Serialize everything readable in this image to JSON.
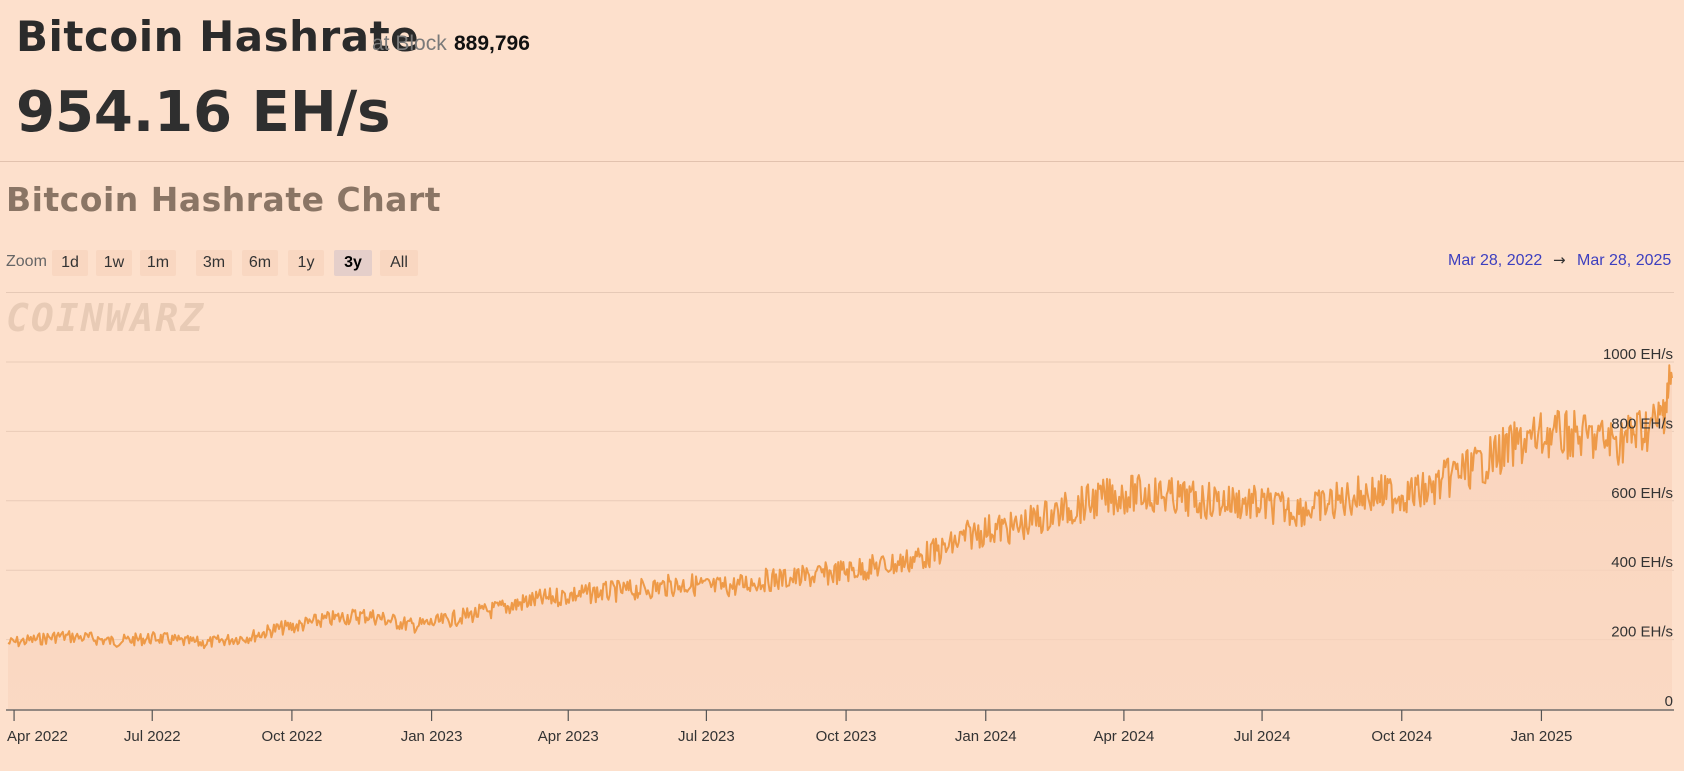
{
  "header": {
    "title": "Bitcoin Hashrate",
    "block_label": "at Block",
    "block_number": "889,796",
    "hashrate_value": "954.16 EH/s"
  },
  "chart_section": {
    "heading": "Bitcoin Hashrate Chart",
    "zoom_label": "Zoom",
    "zoom_options": [
      "1d",
      "1w",
      "1m",
      "3m",
      "6m",
      "1y",
      "3y",
      "All"
    ],
    "active_zoom": "3y",
    "range_from": "Mar 28, 2022",
    "range_arrow": "→",
    "range_to": "Mar 28, 2025",
    "watermark": "COINWARZ"
  },
  "colors": {
    "background": "#fde0cc",
    "line": "#ee9a48",
    "area_fill": "#f9d4bd",
    "range_text": "#3d3fbf"
  },
  "chart_data": {
    "type": "area",
    "title": "",
    "xlabel": "",
    "ylabel": "",
    "y_unit": "EH/s",
    "ylim": [
      0,
      1000
    ],
    "y_ticks": [
      0,
      200,
      400,
      600,
      800,
      1000
    ],
    "y_tick_labels": [
      "0",
      "200 EH/s",
      "400 EH/s",
      "600 EH/s",
      "800 EH/s",
      "1000 EH/s"
    ],
    "xlim": [
      "2022-03-28",
      "2025-03-28"
    ],
    "x_ticks": [
      "2022-04-01",
      "2022-07-01",
      "2022-10-01",
      "2023-01-01",
      "2023-04-01",
      "2023-07-01",
      "2023-10-01",
      "2024-01-01",
      "2024-04-01",
      "2024-07-01",
      "2024-10-01",
      "2025-01-01"
    ],
    "x_tick_labels": [
      "Apr 2022",
      "Jul 2022",
      "Oct 2022",
      "Jan 2023",
      "Apr 2023",
      "Jul 2023",
      "Oct 2023",
      "Jan 2024",
      "Apr 2024",
      "Jul 2024",
      "Oct 2024",
      "Jan 2025"
    ],
    "grid": true,
    "legend": "none",
    "series": [
      {
        "x": [
          "2022-03-28",
          "2022-04-15",
          "2022-05-01",
          "2022-05-20",
          "2022-06-05",
          "2022-06-20",
          "2022-07-05",
          "2022-07-20",
          "2022-08-05",
          "2022-08-20",
          "2022-09-05",
          "2022-09-20",
          "2022-10-05",
          "2022-10-20",
          "2022-11-05",
          "2022-11-20",
          "2022-12-05",
          "2022-12-20",
          "2023-01-05",
          "2023-01-20",
          "2023-02-05",
          "2023-02-20",
          "2023-03-05",
          "2023-03-20",
          "2023-04-05",
          "2023-04-20",
          "2023-05-05",
          "2023-05-20",
          "2023-06-05",
          "2023-06-20",
          "2023-07-05",
          "2023-07-20",
          "2023-08-05",
          "2023-08-20",
          "2023-09-05",
          "2023-09-20",
          "2023-10-05",
          "2023-10-20",
          "2023-11-05",
          "2023-11-20",
          "2023-12-05",
          "2023-12-20",
          "2024-01-05",
          "2024-01-20",
          "2024-02-05",
          "2024-02-20",
          "2024-03-05",
          "2024-03-20",
          "2024-04-05",
          "2024-04-20",
          "2024-05-05",
          "2024-05-20",
          "2024-06-05",
          "2024-06-20",
          "2024-07-05",
          "2024-07-20",
          "2024-08-05",
          "2024-08-20",
          "2024-09-05",
          "2024-09-20",
          "2024-10-05",
          "2024-10-20",
          "2024-11-05",
          "2024-11-20",
          "2024-12-05",
          "2024-12-20",
          "2025-01-05",
          "2025-01-20",
          "2025-02-05",
          "2025-02-20",
          "2025-03-05",
          "2025-03-20",
          "2025-03-28"
        ],
        "values": [
          190,
          200,
          210,
          205,
          195,
          200,
          205,
          195,
          190,
          200,
          210,
          230,
          240,
          255,
          265,
          270,
          255,
          240,
          250,
          265,
          280,
          295,
          310,
          320,
          330,
          335,
          340,
          345,
          355,
          360,
          350,
          355,
          370,
          375,
          380,
          390,
          400,
          410,
          420,
          440,
          460,
          500,
          520,
          520,
          550,
          570,
          590,
          610,
          620,
          620,
          610,
          600,
          600,
          595,
          585,
          575,
          580,
          600,
          620,
          620,
          620,
          630,
          680,
          700,
          740,
          770,
          790,
          790,
          780,
          770,
          800,
          830,
          954
        ]
      }
    ]
  }
}
